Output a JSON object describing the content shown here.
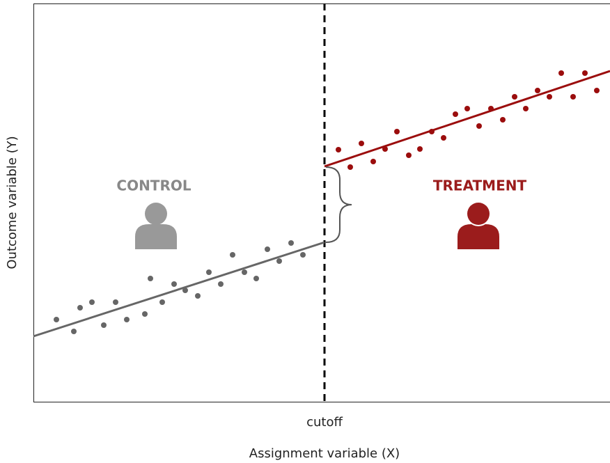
{
  "diagram": {
    "left_label": "CONTROL",
    "right_label": "TREATMENT",
    "cutoff_label": "cutoff",
    "x_axis_label": "Assignment variable (X)",
    "y_axis_label": "Outcome variable (Y)"
  }
}
